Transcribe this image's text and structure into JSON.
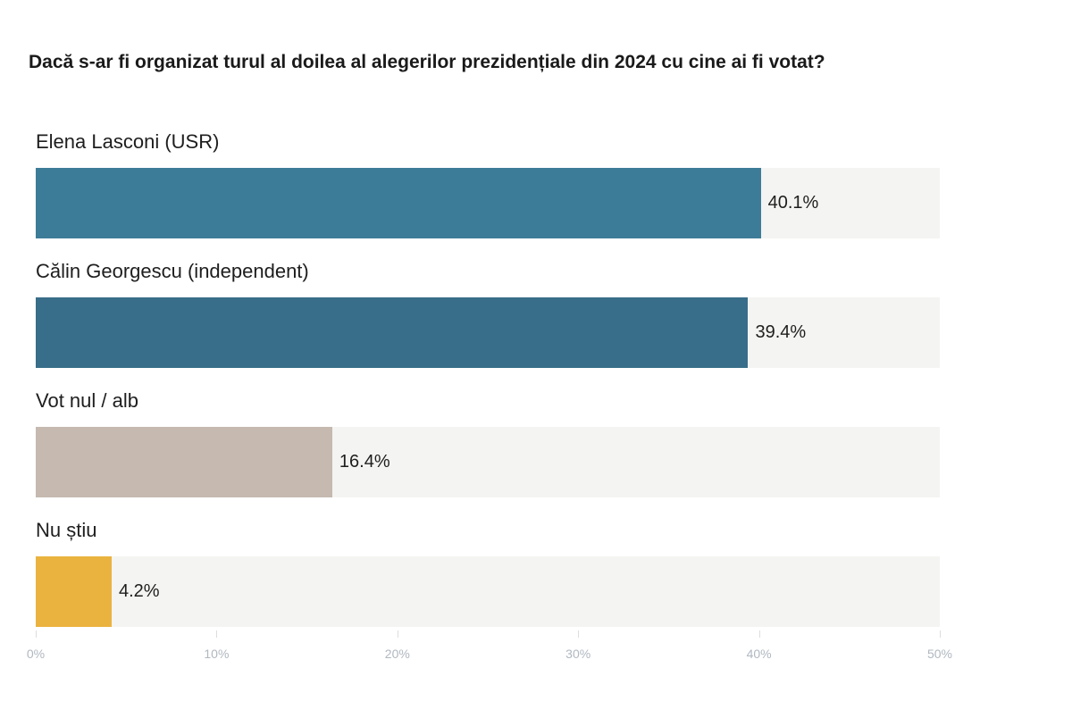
{
  "chart_data": {
    "type": "bar",
    "orientation": "horizontal",
    "title": "Dacă s-ar fi organizat turul al doilea al alegerilor prezidențiale din 2024 cu cine ai fi votat?",
    "categories": [
      "Elena Lasconi (USR)",
      "Călin Georgescu (independent)",
      "Vot nul / alb",
      "Nu știu"
    ],
    "values": [
      40.1,
      39.4,
      16.4,
      4.2
    ],
    "value_labels": [
      "40.1%",
      "39.4%",
      "16.4%",
      "4.2%"
    ],
    "colors": [
      "#3d7c98",
      "#386e89",
      "#c5b9b0",
      "#eab33f"
    ],
    "track_color": "#f4f4f2",
    "xlim": [
      0,
      50
    ],
    "x_ticks": [
      "0%",
      "10%",
      "20%",
      "30%",
      "40%",
      "50%"
    ],
    "xlabel": "",
    "ylabel": "",
    "grid": false,
    "legend": "none"
  }
}
